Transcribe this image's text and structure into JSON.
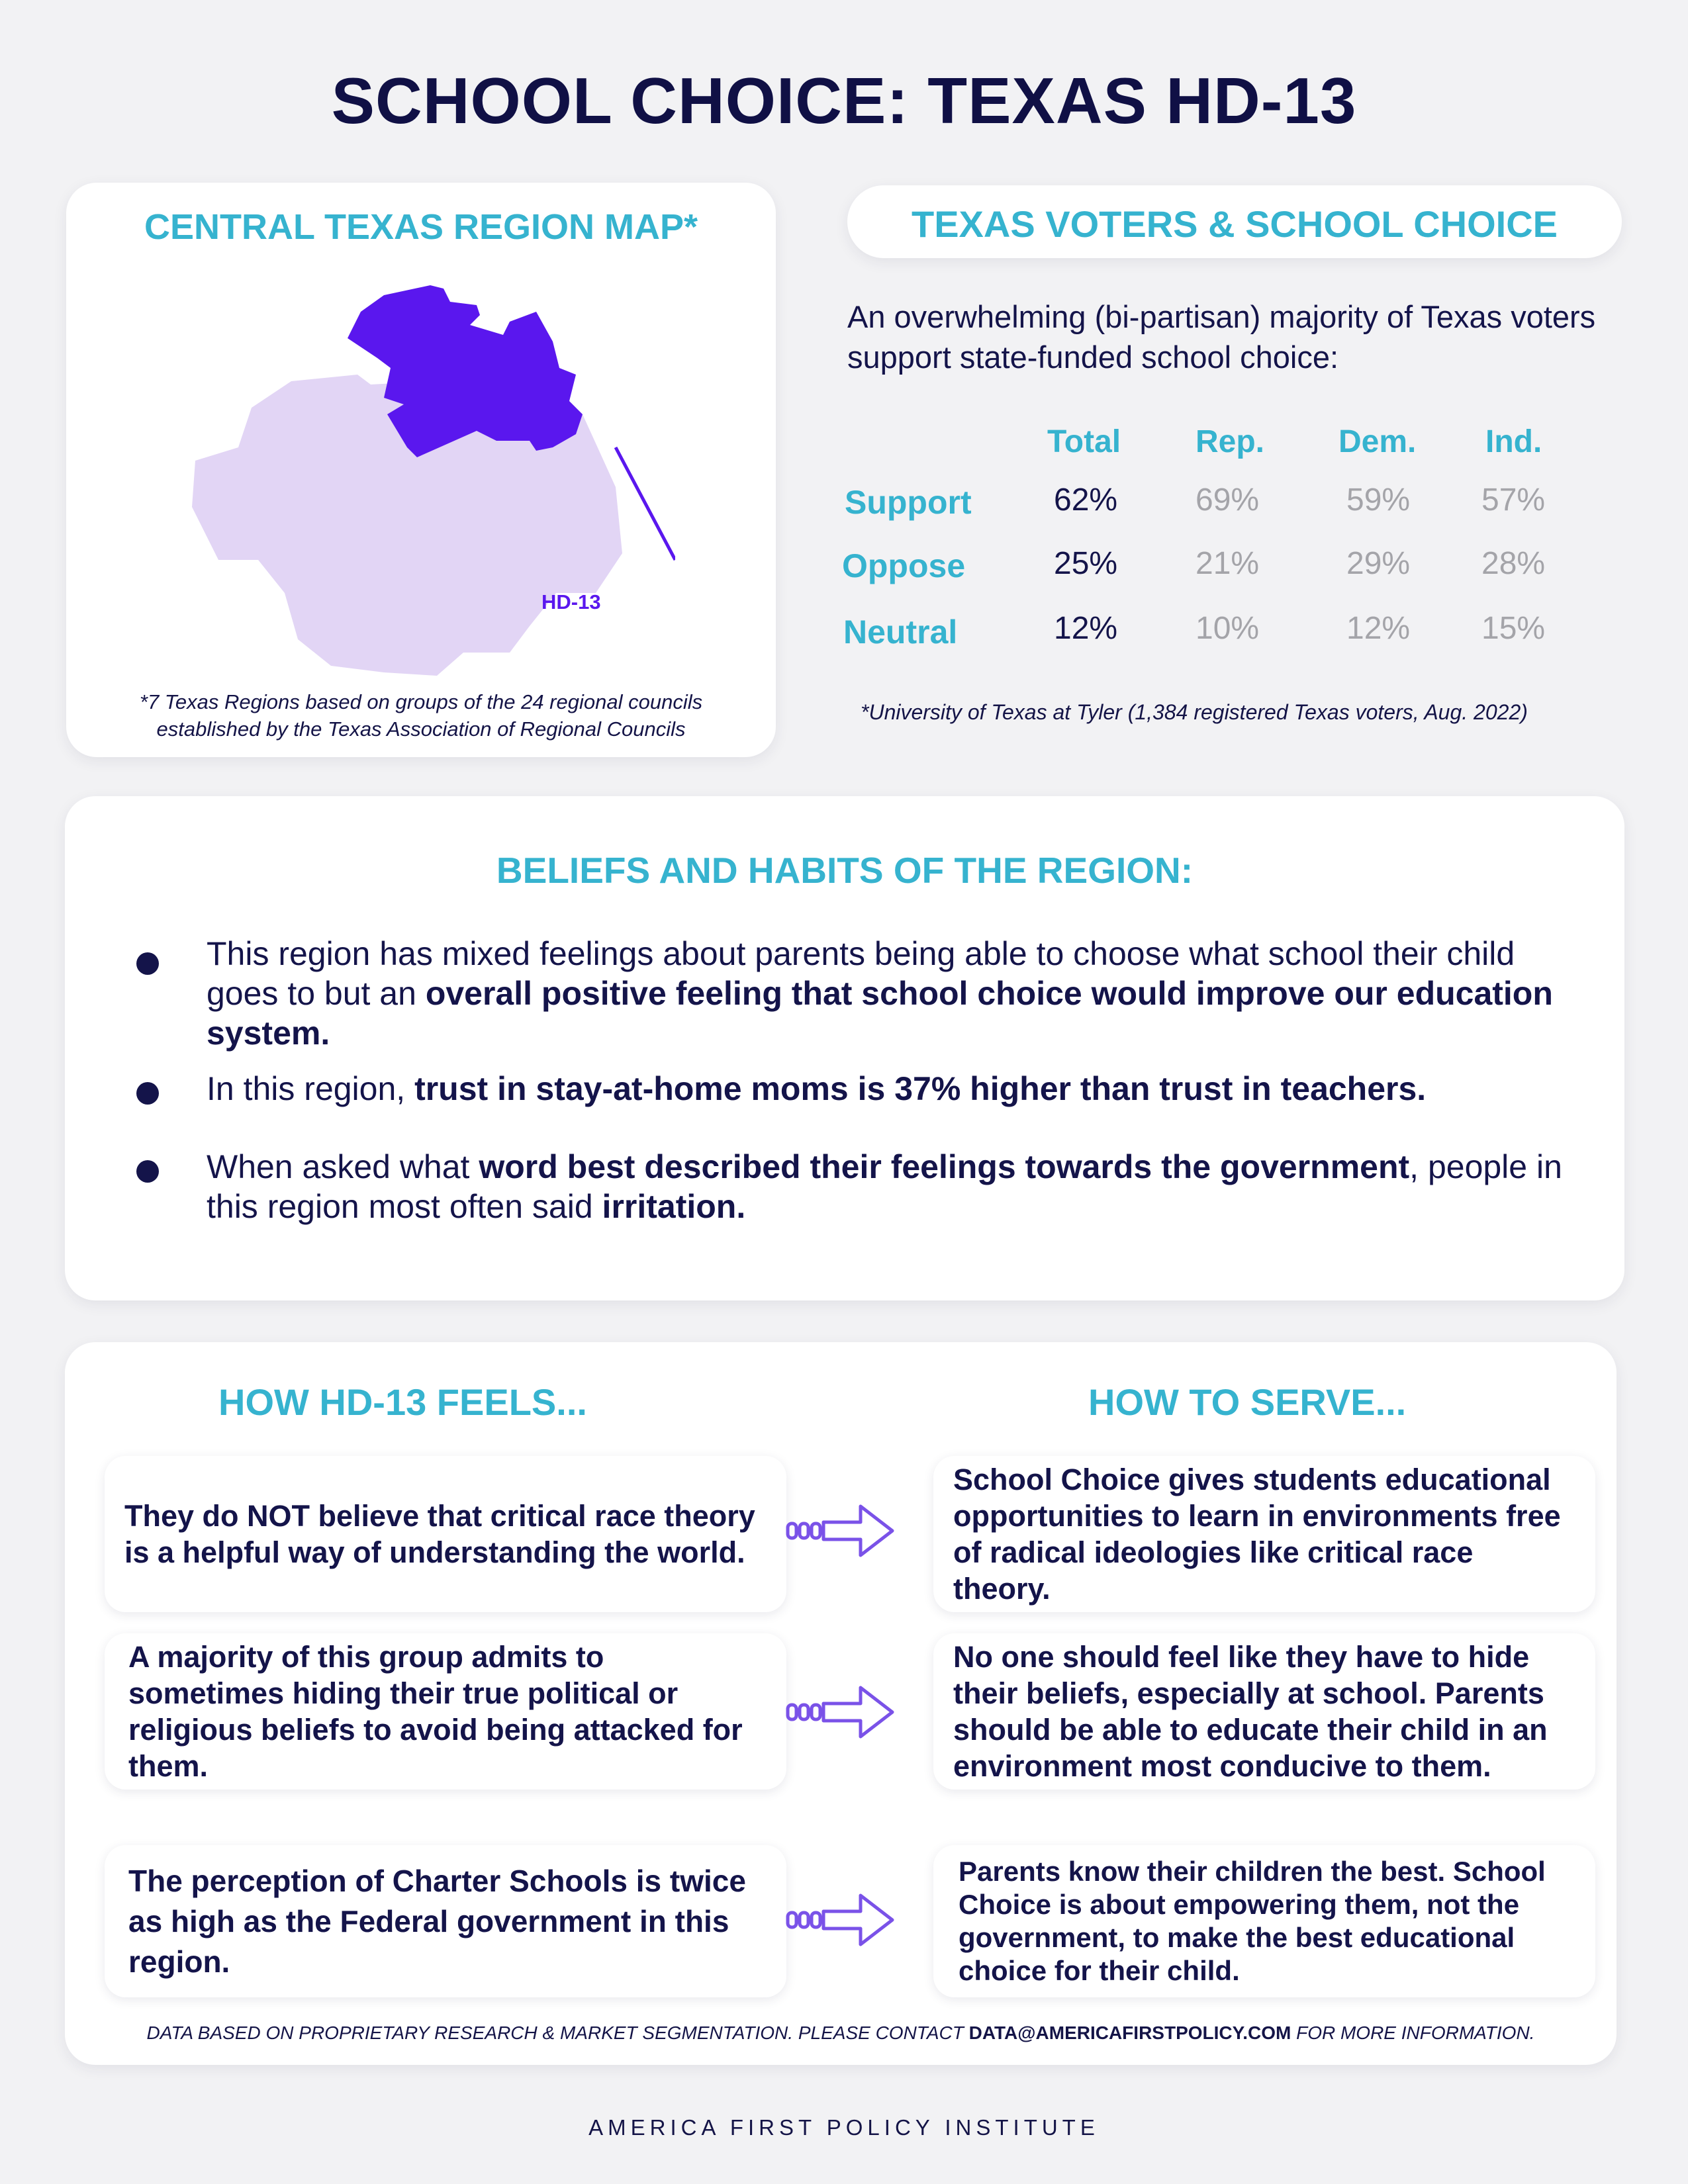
{
  "page": {
    "title": "SCHOOL CHOICE: TEXAS HD-13",
    "brand": "AMERICA FIRST POLICY INSTITUTE"
  },
  "map": {
    "title": "CENTRAL TEXAS REGION MAP*",
    "district_label": "HD-13",
    "note_line1": "*7 Texas Regions based on groups of the 24 regional councils",
    "note_line2": "established by the Texas Association of Regional Councils",
    "colors": {
      "region": "#e2d5f5",
      "district": "#5a17ee"
    }
  },
  "voters": {
    "title": "TEXAS VOTERS & SCHOOL CHOICE",
    "intro": "An overwhelming (bi-partisan) majority of Texas voters support state-funded school choice:",
    "columns": [
      "Total",
      "Rep.",
      "Dem.",
      "Ind."
    ],
    "rows": [
      {
        "label": "Support",
        "values": [
          "62%",
          "69%",
          "59%",
          "57%"
        ]
      },
      {
        "label": "Oppose",
        "values": [
          "25%",
          "21%",
          "29%",
          "28%"
        ]
      },
      {
        "label": "Neutral",
        "values": [
          "12%",
          "10%",
          "12%",
          "15%"
        ]
      }
    ],
    "source": "*University of Texas at Tyler (1,384 registered Texas voters, Aug. 2022)"
  },
  "beliefs": {
    "title": "BELIEFS AND HABITS OF THE REGION:",
    "b1_pre": "This region has mixed feelings about parents being able to choose what school their child goes to but an ",
    "b1_bold": "overall positive feeling that school choice would improve our education system.",
    "b2_pre": "In this region, ",
    "b2_bold": "trust in stay-at-home moms is 37% higher than trust in teachers.",
    "b3_pre": "When asked what ",
    "b3_bold": "word best described their feelings towards the government",
    "b3_mid": ", people in this region most often said ",
    "b3_bold2": "irritation."
  },
  "feels": {
    "title": "HOW HD-13 FEELS...",
    "items": [
      "They do NOT believe that critical race theory is a helpful way of understanding the world.",
      "A majority of this group admits to sometimes hiding their true political or religious beliefs to avoid being attacked for them.",
      "The perception of Charter Schools is twice as high as the Federal government in this region."
    ]
  },
  "serve": {
    "title": "HOW TO SERVE...",
    "items": [
      "School Choice gives students educational opportunities to learn in environments free of radical ideologies like critical race theory.",
      "No one should feel like they have to hide their beliefs, especially at school. Parents should be able to educate their child in an environment most conducive to them.",
      "Parents know their children the best. School Choice is about empowering them, not the government, to make the best educational choice for their child."
    ]
  },
  "footer": {
    "pre": "DATA BASED ON PROPRIETARY RESEARCH & MARKET SEGMENTATION. PLEASE CONTACT ",
    "email": "DATA@AMERICAFIRSTPOLICY.COM",
    "post": " FOR MORE INFORMATION."
  },
  "colors": {
    "navy": "#14144a",
    "teal": "#36b3cf",
    "purple": "#5a17ee",
    "arrow": "#7a52e8"
  }
}
